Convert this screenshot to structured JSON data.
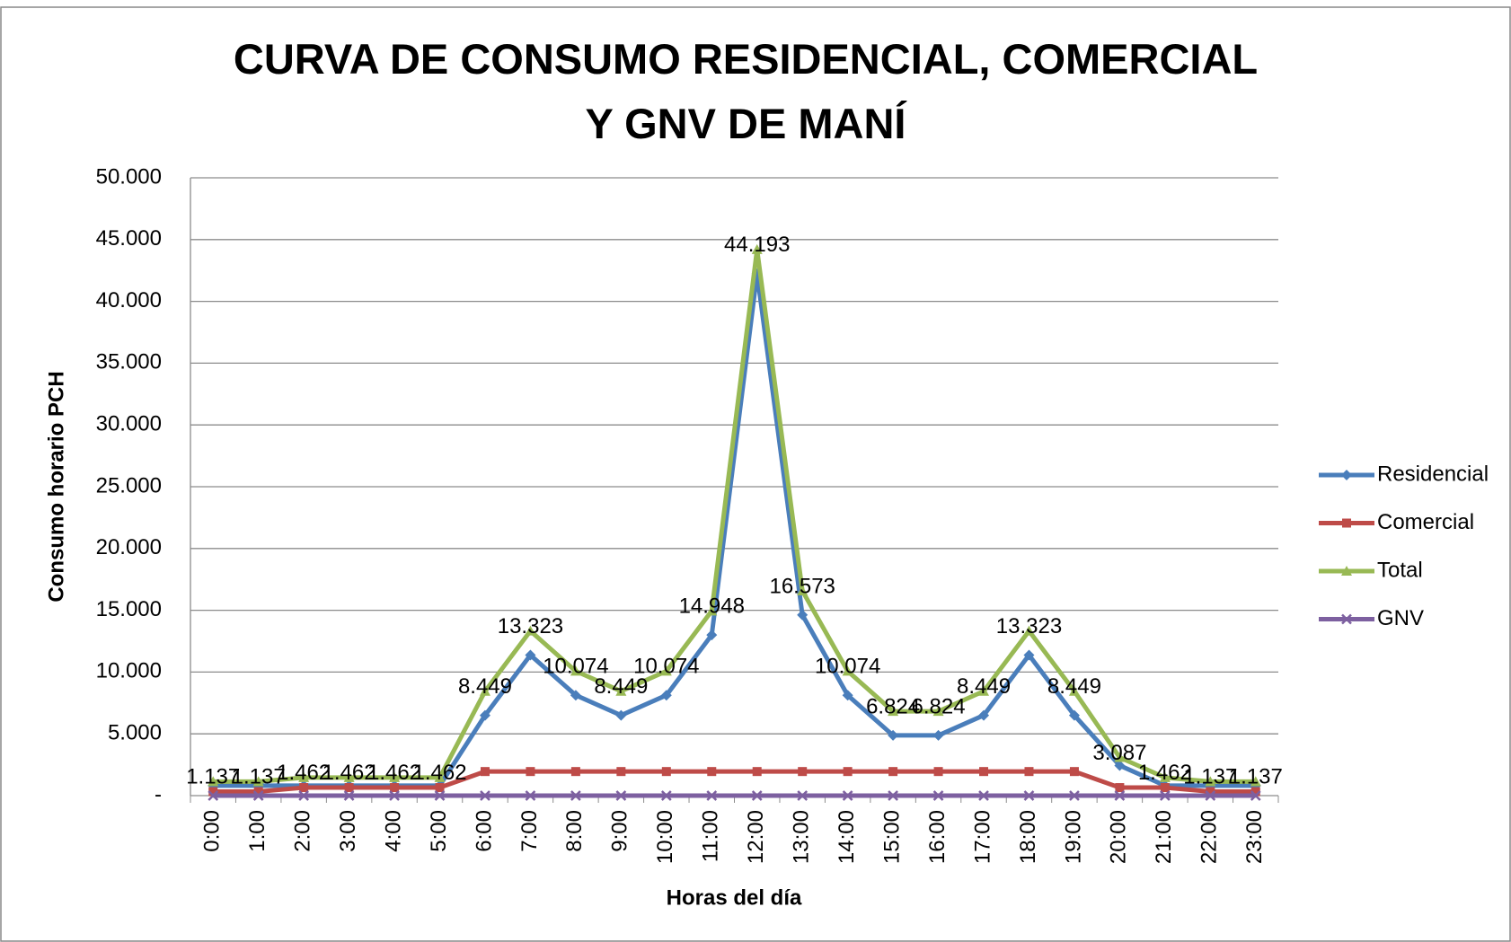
{
  "chart_data": {
    "type": "line",
    "title": "CURVA DE CONSUMO RESIDENCIAL, COMERCIAL Y GNV DE MANÍ",
    "x_label": "Horas del día",
    "y_label": "Consumo horario PCH",
    "categories": [
      "0:00",
      "1:00",
      "2:00",
      "3:00",
      "4:00",
      "5:00",
      "6:00",
      "7:00",
      "8:00",
      "9:00",
      "10:00",
      "11:00",
      "12:00",
      "13:00",
      "14:00",
      "15:00",
      "16:00",
      "17:00",
      "18:00",
      "19:00",
      "20:00",
      "21:00",
      "22:00",
      "23:00"
    ],
    "series": [
      {
        "name": "Residencial",
        "color": "#4a7ebb",
        "marker": "diamond",
        "values": [
          812,
          812,
          812,
          812,
          812,
          812,
          6499,
          11373,
          8124,
          6499,
          8124,
          12998,
          42243,
          14623,
          8124,
          4874,
          4874,
          6499,
          11373,
          6499,
          2437,
          812,
          812,
          812
        ]
      },
      {
        "name": "Comercial",
        "color": "#be4b48",
        "marker": "square",
        "values": [
          325,
          325,
          650,
          650,
          650,
          650,
          1950,
          1950,
          1950,
          1950,
          1950,
          1950,
          1950,
          1950,
          1950,
          1950,
          1950,
          1950,
          1950,
          1950,
          650,
          650,
          325,
          325
        ]
      },
      {
        "name": "Total",
        "color": "#98b954",
        "marker": "triangle",
        "values": [
          1137,
          1137,
          1462,
          1462,
          1462,
          1462,
          8449,
          13323,
          10074,
          8449,
          10074,
          14948,
          44193,
          16573,
          10074,
          6824,
          6824,
          8449,
          13323,
          8449,
          3087,
          1462,
          1137,
          1137
        ],
        "value_labels": [
          "1.137",
          "1.137",
          "1.462",
          "1.462",
          "1.462",
          "1.462",
          "8.449",
          "13.323",
          "10.074",
          "8.449",
          "10.074",
          "14.948",
          "44.193",
          "16.573",
          "10.074",
          "6.824",
          "6.824",
          "8.449",
          "13.323",
          "8.449",
          "3.087",
          "1.462",
          "1.137",
          "1.137"
        ]
      },
      {
        "name": "GNV",
        "color": "#7d60a0",
        "marker": "x",
        "values": [
          0,
          0,
          0,
          0,
          0,
          0,
          0,
          0,
          0,
          0,
          0,
          0,
          0,
          0,
          0,
          0,
          0,
          0,
          0,
          0,
          0,
          0,
          0,
          0
        ]
      }
    ],
    "ylim": [
      0,
      50000
    ],
    "yticks": [
      {
        "value": 0,
        "label": "-"
      },
      {
        "value": 5000,
        "label": "5.000"
      },
      {
        "value": 10000,
        "label": "10.000"
      },
      {
        "value": 15000,
        "label": "15.000"
      },
      {
        "value": 20000,
        "label": "20.000"
      },
      {
        "value": 25000,
        "label": "25.000"
      },
      {
        "value": 30000,
        "label": "30.000"
      },
      {
        "value": 35000,
        "label": "35.000"
      },
      {
        "value": 40000,
        "label": "40.000"
      },
      {
        "value": 45000,
        "label": "45.000"
      },
      {
        "value": 50000,
        "label": "50.000"
      }
    ],
    "grid": true,
    "legend": "right"
  }
}
